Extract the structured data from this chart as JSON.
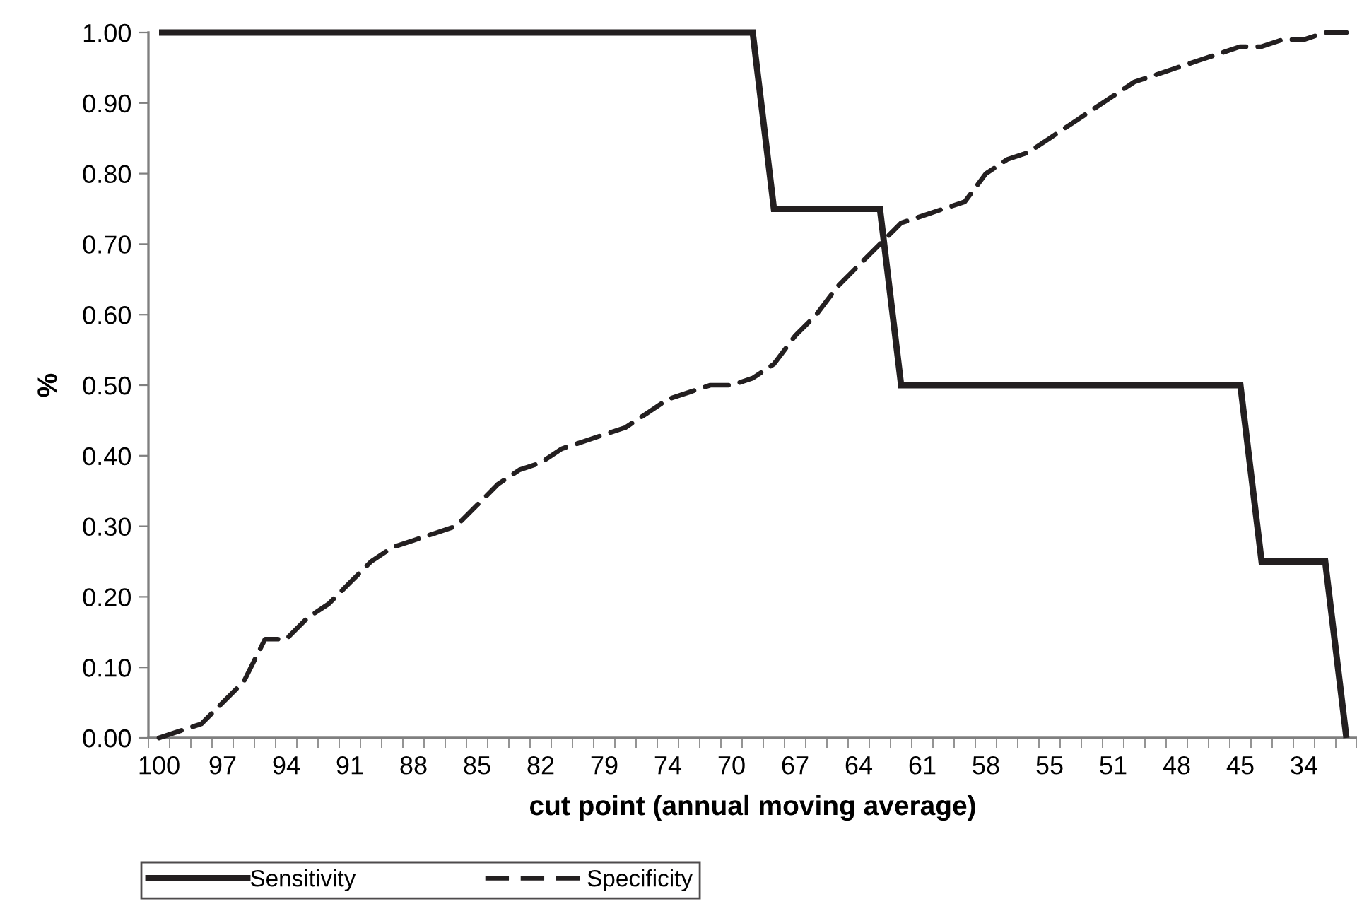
{
  "chart_data": {
    "type": "line",
    "xlabel": "cut point (annual moving average)",
    "ylabel": "%",
    "categories": [
      "100",
      null,
      null,
      "97",
      null,
      null,
      "94",
      null,
      null,
      "91",
      null,
      null,
      "88",
      null,
      null,
      "85",
      null,
      null,
      "82",
      null,
      null,
      "79",
      null,
      null,
      "74",
      null,
      null,
      "70",
      null,
      null,
      "67",
      null,
      null,
      "64",
      null,
      null,
      "61",
      null,
      null,
      "58",
      null,
      null,
      "55",
      null,
      null,
      "51",
      null,
      null,
      "48",
      null,
      null,
      "45",
      null,
      null,
      "34",
      null,
      null
    ],
    "series": [
      {
        "name": "Sensitivity",
        "color": "#231f20",
        "line_style": "solid",
        "values": [
          1,
          1,
          1,
          1,
          1,
          1,
          1,
          1,
          1,
          1,
          1,
          1,
          1,
          1,
          1,
          1,
          1,
          1,
          1,
          1,
          1,
          1,
          1,
          1,
          1,
          1,
          1,
          1,
          1,
          0.75,
          0.75,
          0.75,
          0.75,
          0.75,
          0.75,
          0.5,
          0.5,
          0.5,
          0.5,
          0.5,
          0.5,
          0.5,
          0.5,
          0.5,
          0.5,
          0.5,
          0.5,
          0.5,
          0.5,
          0.5,
          0.5,
          0.5,
          0.25,
          0.25,
          0.25,
          0.25,
          0
        ]
      },
      {
        "name": "Specificity",
        "color": "#231f20",
        "line_style": "dashed",
        "values": [
          0,
          0.01,
          0.02,
          0.05,
          0.08,
          0.14,
          0.14,
          0.17,
          0.19,
          0.22,
          0.25,
          0.27,
          0.28,
          0.29,
          0.3,
          0.33,
          0.36,
          0.38,
          0.39,
          0.41,
          0.42,
          0.43,
          0.44,
          0.46,
          0.48,
          0.49,
          0.5,
          0.5,
          0.51,
          0.53,
          0.57,
          0.6,
          0.64,
          0.67,
          0.7,
          0.73,
          0.74,
          0.75,
          0.76,
          0.8,
          0.82,
          0.83,
          0.85,
          0.87,
          0.89,
          0.91,
          0.93,
          0.94,
          0.95,
          0.96,
          0.97,
          0.98,
          0.98,
          0.99,
          0.99,
          1,
          1
        ]
      }
    ],
    "ylim": [
      0,
      1
    ],
    "yticks": [
      {
        "value": 0,
        "label": "0.00"
      },
      {
        "value": 0.1,
        "label": "0.10"
      },
      {
        "value": 0.2,
        "label": "0.20"
      },
      {
        "value": 0.3,
        "label": "0.30"
      },
      {
        "value": 0.4,
        "label": "0.40"
      },
      {
        "value": 0.5,
        "label": "0.50"
      },
      {
        "value": 0.6,
        "label": "0.60"
      },
      {
        "value": 0.7,
        "label": "0.70"
      },
      {
        "value": 0.8,
        "label": "0.80"
      },
      {
        "value": 0.9,
        "label": "0.90"
      },
      {
        "value": 1,
        "label": "1.00"
      }
    ],
    "grid": false,
    "legend": "bottom left",
    "marker": "none"
  }
}
